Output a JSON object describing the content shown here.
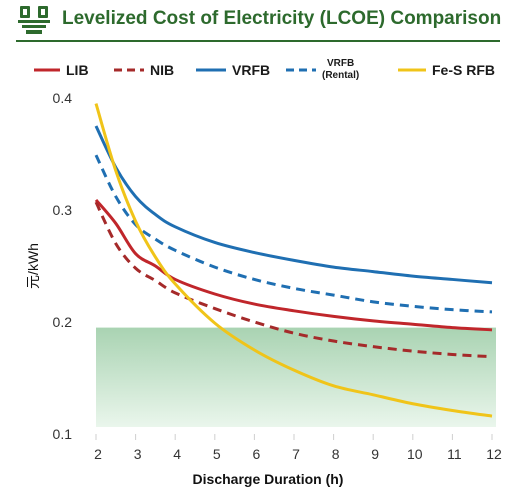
{
  "header": {
    "title": "Levelized Cost of Electricity (LCOE) Comparison",
    "logo_icon": "building-logo-icon",
    "accent_color": "#2d6a2d"
  },
  "chart_data": {
    "type": "line",
    "title": "Levelized Cost of Electricity (LCOE) Comparison",
    "xlabel": "Discharge Duration (h)",
    "ylabel": "元/kWh",
    "xlim": [
      2,
      12
    ],
    "ylim": [
      0.1,
      0.4
    ],
    "x_ticks": [
      "2",
      "3",
      "4",
      "5",
      "6",
      "7",
      "8",
      "9",
      "10",
      "11",
      "12"
    ],
    "y_ticks": [
      "0.1",
      "0.2",
      "0.3",
      "0.4"
    ],
    "grid": false,
    "legend_position": "top",
    "highlight_band": {
      "y_from": 0.1,
      "y_to": 0.195,
      "color": "#c8e3cd"
    },
    "x": [
      2,
      2.5,
      3,
      3.5,
      4,
      5,
      6,
      7,
      8,
      9,
      10,
      11,
      12
    ],
    "series": [
      {
        "name": "LIB",
        "style": "solid",
        "color": "#c0262b",
        "values": [
          0.309,
          0.288,
          0.261,
          0.25,
          0.238,
          0.225,
          0.216,
          0.21,
          0.205,
          0.201,
          0.198,
          0.195,
          0.193
        ]
      },
      {
        "name": "NIB",
        "style": "dashed",
        "color": "#a52a2a",
        "values": [
          0.307,
          0.27,
          0.248,
          0.237,
          0.226,
          0.212,
          0.2,
          0.19,
          0.183,
          0.178,
          0.174,
          0.171,
          0.169
        ]
      },
      {
        "name": "VRFB",
        "style": "solid",
        "color": "#1f6fb2",
        "values": [
          0.375,
          0.338,
          0.312,
          0.296,
          0.285,
          0.271,
          0.262,
          0.255,
          0.249,
          0.245,
          0.241,
          0.238,
          0.235
        ]
      },
      {
        "name": "VRFB (Rental)",
        "label_line1": "VRFB",
        "label_line2": "(Rental)",
        "style": "dashed",
        "color": "#1f6fb2",
        "values": [
          0.349,
          0.312,
          0.287,
          0.274,
          0.264,
          0.249,
          0.238,
          0.23,
          0.224,
          0.218,
          0.214,
          0.211,
          0.209
        ]
      },
      {
        "name": "Fe-S RFB",
        "style": "solid",
        "color": "#f0c419",
        "values": [
          0.395,
          0.335,
          0.29,
          0.258,
          0.234,
          0.199,
          0.175,
          0.157,
          0.143,
          0.135,
          0.127,
          0.121,
          0.116
        ]
      }
    ]
  }
}
